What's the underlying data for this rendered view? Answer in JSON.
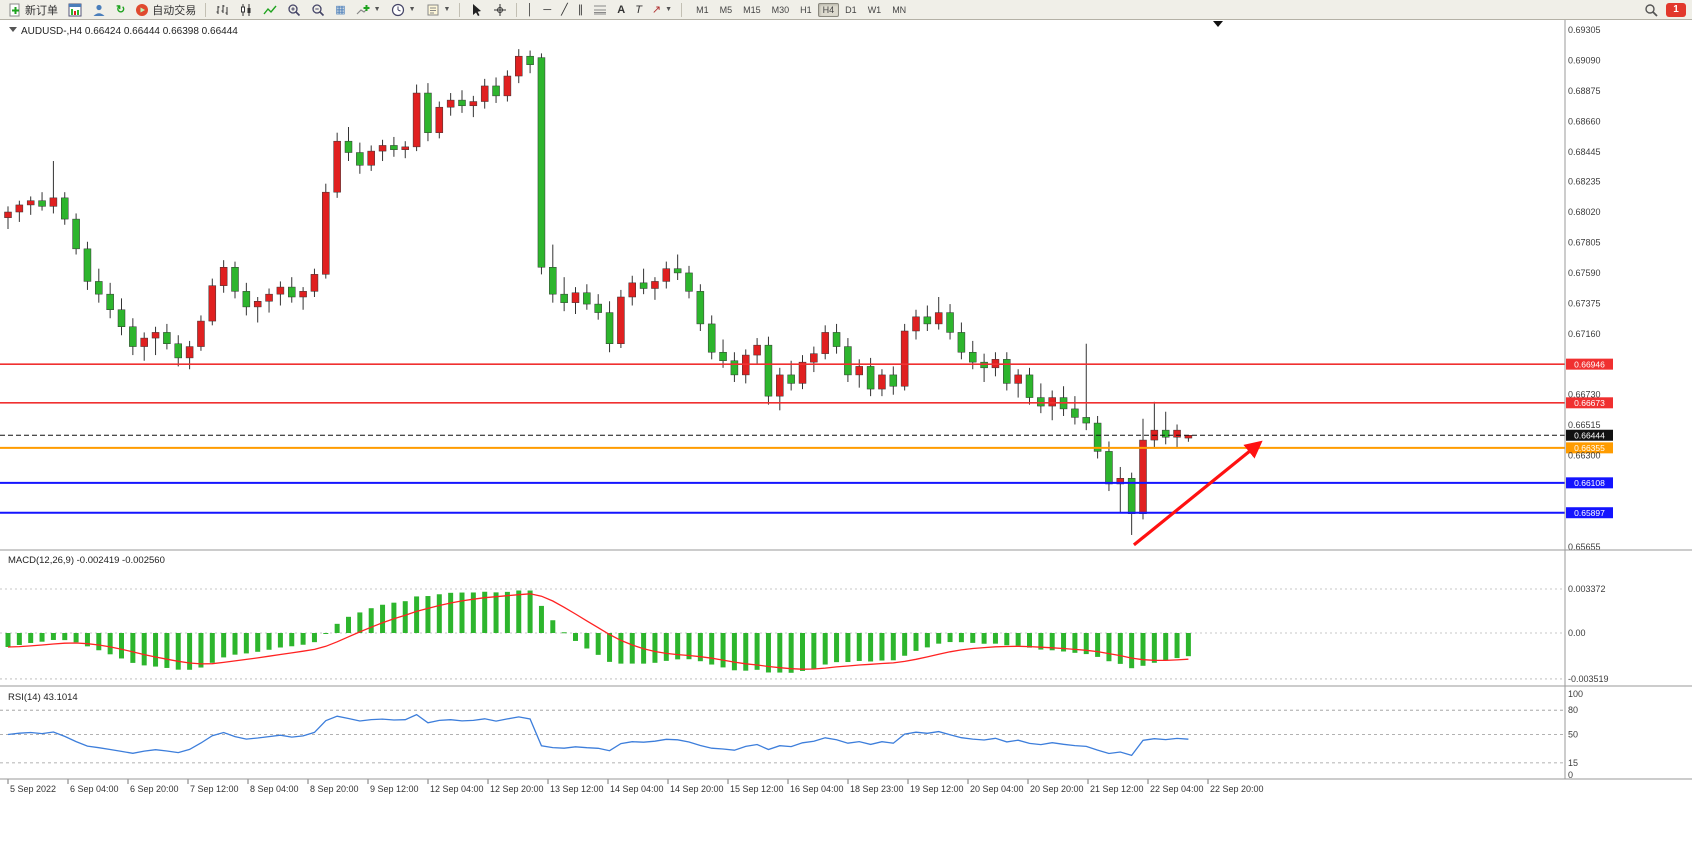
{
  "toolbar": {
    "new_order_label": "新订单",
    "auto_trading_label": "自动交易",
    "timeframes": [
      "M1",
      "M5",
      "M15",
      "M30",
      "H1",
      "H4",
      "D1",
      "W1",
      "MN"
    ],
    "active_timeframe": "H4",
    "notification_count": "1",
    "icon_names": [
      "new-order-icon",
      "chart-window-icon",
      "profile-icon",
      "refresh-icon",
      "autotrading-icon",
      "bars-chart-icon",
      "candlestick-chart-icon",
      "line-chart-icon",
      "zoom-in-icon",
      "zoom-out-icon",
      "tile-windows-icon",
      "indicators-icon",
      "periods-icon",
      "templates-icon",
      "cursor-icon",
      "crosshair-icon",
      "vertical-line-icon",
      "horizontal-line-icon",
      "trendline-icon",
      "channel-icon",
      "fibonacci-icon",
      "text-icon",
      "text-label-icon",
      "arrows-icon",
      "search-icon"
    ]
  },
  "chart": {
    "title_symbol": "AUDUSD-",
    "title_timeframe": "H4",
    "ohlc": {
      "open": "0.66424",
      "high": "0.66444",
      "low": "0.66398",
      "close": "0.66444"
    }
  },
  "colors": {
    "bull": "#e02020",
    "bear": "#2db52d",
    "macd_hist": "#2db52d",
    "macd_signal": "#ff2222",
    "rsi_line": "#3d7edb",
    "grid_text": "#3c3c3c",
    "hline_red": "#f03030",
    "hline_blue": "#1414ff",
    "hline_orange": "#ff9c00",
    "bid_black": "#111111",
    "arrow_red": "#ff1111"
  },
  "chart_data": {
    "type": "candlestick",
    "symbol": "AUDUSD-",
    "timeframe": "H4",
    "price_axis": {
      "min": 0.65655,
      "max": 0.69305,
      "ticks": [
        {
          "v": 0.69305,
          "label": "0.69305"
        },
        {
          "v": 0.6909,
          "label": "0.69090"
        },
        {
          "v": 0.68875,
          "label": "0.68875"
        },
        {
          "v": 0.6866,
          "label": "0.68660"
        },
        {
          "v": 0.68445,
          "label": "0.68445"
        },
        {
          "v": 0.68235,
          "label": "0.68235"
        },
        {
          "v": 0.6802,
          "label": "0.68020"
        },
        {
          "v": 0.67805,
          "label": "0.67805"
        },
        {
          "v": 0.6759,
          "label": "0.67590"
        },
        {
          "v": 0.67375,
          "label": "0.67375"
        },
        {
          "v": 0.6716,
          "label": "0.67160"
        },
        {
          "v": 0.6673,
          "label": "0.66730"
        },
        {
          "v": 0.66515,
          "label": "0.66515"
        },
        {
          "v": 0.663,
          "label": "0.66300"
        },
        {
          "v": 0.65655,
          "label": "0.65655"
        }
      ]
    },
    "hlines": [
      {
        "price": 0.66946,
        "label": "0.66946",
        "color": "#f03030",
        "style": "solid",
        "width": 1.6
      },
      {
        "price": 0.66673,
        "label": "0.66673",
        "color": "#f03030",
        "style": "solid",
        "width": 1.6
      },
      {
        "price": 0.66444,
        "label": "0.66444",
        "color": "#111111",
        "style": "dashed",
        "width": 1
      },
      {
        "price": 0.66355,
        "label": "0.66355",
        "color": "#ff9c00",
        "style": "solid",
        "width": 2
      },
      {
        "price": 0.66108,
        "label": "0.66108",
        "color": "#1414ff",
        "style": "solid",
        "width": 2
      },
      {
        "price": 0.65897,
        "label": "0.65897",
        "color": "#1414ff",
        "style": "solid",
        "width": 2
      }
    ],
    "arrow": {
      "from_index": 99.2,
      "from_price": 0.6567,
      "to_index": 110.3,
      "to_price": 0.6639
    },
    "candles": [
      [
        0.6798,
        0.6806,
        0.679,
        0.6802
      ],
      [
        0.6802,
        0.681,
        0.6795,
        0.6807
      ],
      [
        0.6807,
        0.6813,
        0.68,
        0.681
      ],
      [
        0.681,
        0.6816,
        0.6803,
        0.6806
      ],
      [
        0.6806,
        0.6838,
        0.6801,
        0.6812
      ],
      [
        0.6812,
        0.6816,
        0.6793,
        0.6797
      ],
      [
        0.6797,
        0.6801,
        0.6772,
        0.6776
      ],
      [
        0.6776,
        0.6781,
        0.6747,
        0.6753
      ],
      [
        0.6753,
        0.6762,
        0.6738,
        0.6744
      ],
      [
        0.6744,
        0.6752,
        0.6727,
        0.6733
      ],
      [
        0.6733,
        0.6741,
        0.6715,
        0.6721
      ],
      [
        0.6721,
        0.6727,
        0.6701,
        0.6707
      ],
      [
        0.6707,
        0.6717,
        0.6697,
        0.6713
      ],
      [
        0.6713,
        0.6721,
        0.6701,
        0.6717
      ],
      [
        0.6717,
        0.6723,
        0.6705,
        0.6709
      ],
      [
        0.6709,
        0.6715,
        0.6693,
        0.6699
      ],
      [
        0.6699,
        0.6711,
        0.6691,
        0.6707
      ],
      [
        0.6707,
        0.6729,
        0.6704,
        0.6725
      ],
      [
        0.6725,
        0.6755,
        0.6722,
        0.675
      ],
      [
        0.675,
        0.6768,
        0.6745,
        0.6763
      ],
      [
        0.6763,
        0.6767,
        0.6741,
        0.6746
      ],
      [
        0.6746,
        0.6752,
        0.6729,
        0.6735
      ],
      [
        0.6735,
        0.6742,
        0.6724,
        0.6739
      ],
      [
        0.6739,
        0.6748,
        0.6731,
        0.6744
      ],
      [
        0.6744,
        0.6753,
        0.6736,
        0.6749
      ],
      [
        0.6749,
        0.6756,
        0.6738,
        0.6742
      ],
      [
        0.6742,
        0.6749,
        0.6733,
        0.6746
      ],
      [
        0.6746,
        0.6762,
        0.6742,
        0.6758
      ],
      [
        0.6758,
        0.6822,
        0.6755,
        0.6816
      ],
      [
        0.6816,
        0.6858,
        0.6812,
        0.6852
      ],
      [
        0.6852,
        0.6862,
        0.6838,
        0.6844
      ],
      [
        0.6844,
        0.6851,
        0.6829,
        0.6835
      ],
      [
        0.6835,
        0.6849,
        0.6831,
        0.6845
      ],
      [
        0.6845,
        0.6853,
        0.6838,
        0.6849
      ],
      [
        0.6849,
        0.6855,
        0.6841,
        0.6846
      ],
      [
        0.6846,
        0.6852,
        0.684,
        0.6848
      ],
      [
        0.6848,
        0.6892,
        0.6845,
        0.6886
      ],
      [
        0.6886,
        0.6893,
        0.6852,
        0.6858
      ],
      [
        0.6858,
        0.688,
        0.6854,
        0.6876
      ],
      [
        0.6876,
        0.6886,
        0.687,
        0.6881
      ],
      [
        0.6881,
        0.6888,
        0.6872,
        0.6877
      ],
      [
        0.6877,
        0.6884,
        0.6869,
        0.688
      ],
      [
        0.688,
        0.6896,
        0.6875,
        0.6891
      ],
      [
        0.6891,
        0.6897,
        0.6879,
        0.6884
      ],
      [
        0.6884,
        0.6902,
        0.688,
        0.6898
      ],
      [
        0.6898,
        0.6917,
        0.6893,
        0.6912
      ],
      [
        0.6912,
        0.6916,
        0.69,
        0.6906
      ],
      [
        0.6911,
        0.6914,
        0.6758,
        0.6763
      ],
      [
        0.6763,
        0.6779,
        0.6738,
        0.6744
      ],
      [
        0.6744,
        0.6756,
        0.6732,
        0.6738
      ],
      [
        0.6738,
        0.6749,
        0.673,
        0.6745
      ],
      [
        0.6745,
        0.6751,
        0.6733,
        0.6737
      ],
      [
        0.6737,
        0.6744,
        0.6726,
        0.6731
      ],
      [
        0.6731,
        0.6739,
        0.6703,
        0.6709
      ],
      [
        0.6709,
        0.6747,
        0.6706,
        0.6742
      ],
      [
        0.6742,
        0.6757,
        0.6736,
        0.6752
      ],
      [
        0.6752,
        0.6762,
        0.6744,
        0.6748
      ],
      [
        0.6748,
        0.6756,
        0.674,
        0.6753
      ],
      [
        0.6753,
        0.6767,
        0.6748,
        0.6762
      ],
      [
        0.6762,
        0.6772,
        0.6754,
        0.6759
      ],
      [
        0.6759,
        0.6764,
        0.6741,
        0.6746
      ],
      [
        0.6746,
        0.6751,
        0.6718,
        0.6723
      ],
      [
        0.6723,
        0.6729,
        0.6698,
        0.6703
      ],
      [
        0.6703,
        0.6712,
        0.6692,
        0.6697
      ],
      [
        0.6697,
        0.6703,
        0.6682,
        0.6687
      ],
      [
        0.6687,
        0.6705,
        0.6681,
        0.6701
      ],
      [
        0.6701,
        0.6713,
        0.6695,
        0.6708
      ],
      [
        0.6708,
        0.6714,
        0.6666,
        0.6672
      ],
      [
        0.6672,
        0.6692,
        0.6662,
        0.6687
      ],
      [
        0.6687,
        0.6697,
        0.6676,
        0.6681
      ],
      [
        0.6681,
        0.6701,
        0.6677,
        0.6696
      ],
      [
        0.6696,
        0.6707,
        0.6689,
        0.6702
      ],
      [
        0.6702,
        0.6722,
        0.6698,
        0.6717
      ],
      [
        0.6717,
        0.6723,
        0.6702,
        0.6707
      ],
      [
        0.6707,
        0.6713,
        0.6682,
        0.6687
      ],
      [
        0.6687,
        0.6698,
        0.6678,
        0.6693
      ],
      [
        0.6693,
        0.6699,
        0.6672,
        0.6677
      ],
      [
        0.6677,
        0.6691,
        0.6672,
        0.6687
      ],
      [
        0.6687,
        0.6693,
        0.6673,
        0.6679
      ],
      [
        0.6679,
        0.6723,
        0.6676,
        0.6718
      ],
      [
        0.6718,
        0.6733,
        0.6712,
        0.6728
      ],
      [
        0.6728,
        0.6736,
        0.6718,
        0.6723
      ],
      [
        0.6723,
        0.6742,
        0.6719,
        0.6731
      ],
      [
        0.6731,
        0.6737,
        0.6712,
        0.6717
      ],
      [
        0.6717,
        0.6724,
        0.6698,
        0.6703
      ],
      [
        0.6703,
        0.6711,
        0.6691,
        0.6696
      ],
      [
        0.6696,
        0.6702,
        0.6682,
        0.6692
      ],
      [
        0.6692,
        0.6703,
        0.6686,
        0.6698
      ],
      [
        0.6698,
        0.6703,
        0.6676,
        0.6681
      ],
      [
        0.6681,
        0.6691,
        0.6671,
        0.6687
      ],
      [
        0.6687,
        0.6692,
        0.6666,
        0.6671
      ],
      [
        0.6671,
        0.6681,
        0.666,
        0.6665
      ],
      [
        0.6665,
        0.6676,
        0.6655,
        0.6671
      ],
      [
        0.6671,
        0.6679,
        0.6658,
        0.6663
      ],
      [
        0.6663,
        0.6672,
        0.6652,
        0.6657
      ],
      [
        0.6657,
        0.6709,
        0.6648,
        0.6653
      ],
      [
        0.6653,
        0.6658,
        0.6628,
        0.6633
      ],
      [
        0.6633,
        0.664,
        0.6605,
        0.661
      ],
      [
        0.661,
        0.6622,
        0.659,
        0.6614
      ],
      [
        0.6614,
        0.6618,
        0.6574,
        0.6589
      ],
      [
        0.6589,
        0.6656,
        0.6585,
        0.6641
      ],
      [
        0.6641,
        0.6668,
        0.6635,
        0.6648
      ],
      [
        0.6648,
        0.6661,
        0.6638,
        0.6643
      ],
      [
        0.6643,
        0.6652,
        0.6636,
        0.6648
      ],
      [
        0.66424,
        0.66444,
        0.66398,
        0.66444
      ]
    ],
    "macd": {
      "label": "MACD(12,26,9)",
      "value": "-0.002419",
      "signal_value": "-0.002560",
      "axis": [
        {
          "v": 0.003372,
          "label": "0.003372"
        },
        {
          "v": 0,
          "label": "0.00"
        },
        {
          "v": -0.003519,
          "label": "-0.003519"
        }
      ]
    },
    "rsi": {
      "label": "RSI(14)",
      "value": "43.1014",
      "levels": [
        80,
        50,
        15
      ],
      "axis": [
        {
          "v": 100,
          "label": "100"
        },
        {
          "v": 80,
          "label": "80"
        },
        {
          "v": 50,
          "label": "50"
        },
        {
          "v": 15,
          "label": "15"
        },
        {
          "v": 0,
          "label": "0"
        }
      ]
    },
    "time_labels": [
      "5 Sep 2022",
      "6 Sep 04:00",
      "6 Sep 20:00",
      "7 Sep 12:00",
      "8 Sep 04:00",
      "8 Sep 20:00",
      "9 Sep 12:00",
      "12 Sep 04:00",
      "12 Sep 20:00",
      "13 Sep 12:00",
      "14 Sep 04:00",
      "14 Sep 20:00",
      "15 Sep 12:00",
      "16 Sep 04:00",
      "18 Sep 23:00",
      "19 Sep 12:00",
      "20 Sep 04:00",
      "20 Sep 20:00",
      "21 Sep 12:00",
      "22 Sep 04:00",
      "22 Sep 20:00"
    ]
  }
}
